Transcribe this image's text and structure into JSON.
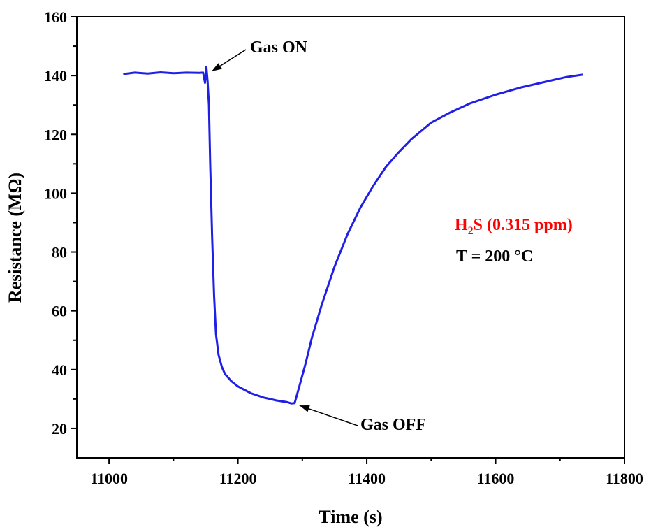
{
  "chart_data": {
    "type": "line",
    "title": "",
    "xlabel": "Time (s)",
    "ylabel": "Resistance (MΩ)",
    "xlim": [
      10950,
      11800
    ],
    "ylim": [
      10,
      160
    ],
    "x_ticks": [
      11000,
      11200,
      11400,
      11600,
      11800
    ],
    "y_ticks": [
      20,
      40,
      60,
      80,
      100,
      120,
      140,
      160
    ],
    "grid": false,
    "line_color": "#1f1fe6",
    "series": [
      {
        "x": [
          11022,
          11040,
          11060,
          11080,
          11100,
          11120,
          11140,
          11146,
          11149,
          11151,
          11153,
          11155,
          11157,
          11160,
          11163,
          11166,
          11170,
          11175,
          11180,
          11190,
          11200,
          11220,
          11240,
          11260,
          11275,
          11283,
          11288,
          11295,
          11305,
          11315,
          11330,
          11350,
          11370,
          11390,
          11410,
          11430,
          11450,
          11470,
          11500,
          11530,
          11560,
          11600,
          11640,
          11680,
          11710,
          11735
        ],
        "y": [
          140.5,
          141.0,
          140.7,
          141.1,
          140.8,
          141.0,
          140.9,
          141.0,
          137.5,
          143.0,
          138.0,
          130.0,
          110.0,
          85.0,
          65.0,
          52.0,
          45.0,
          41.0,
          38.5,
          36.0,
          34.3,
          32.0,
          30.5,
          29.5,
          29.0,
          28.5,
          28.6,
          34.0,
          42.0,
          51.0,
          62.0,
          75.0,
          86.0,
          95.0,
          102.5,
          109.0,
          114.0,
          118.5,
          124.0,
          127.5,
          130.5,
          133.5,
          136.0,
          138.0,
          139.5,
          140.3
        ]
      }
    ],
    "annotations": [
      {
        "text": "Gas ON",
        "x": 11153,
        "y": 141
      },
      {
        "text": "Gas OFF",
        "x": 11287,
        "y": 28.5
      }
    ],
    "condition": {
      "gas_prefix": "H",
      "gas_subscript": "2",
      "gas_suffix": "S (",
      "concentration": "0.315 ppm",
      "close_paren": ")",
      "temperature": "T = 200 °C",
      "text_color": "#ff0000"
    }
  }
}
